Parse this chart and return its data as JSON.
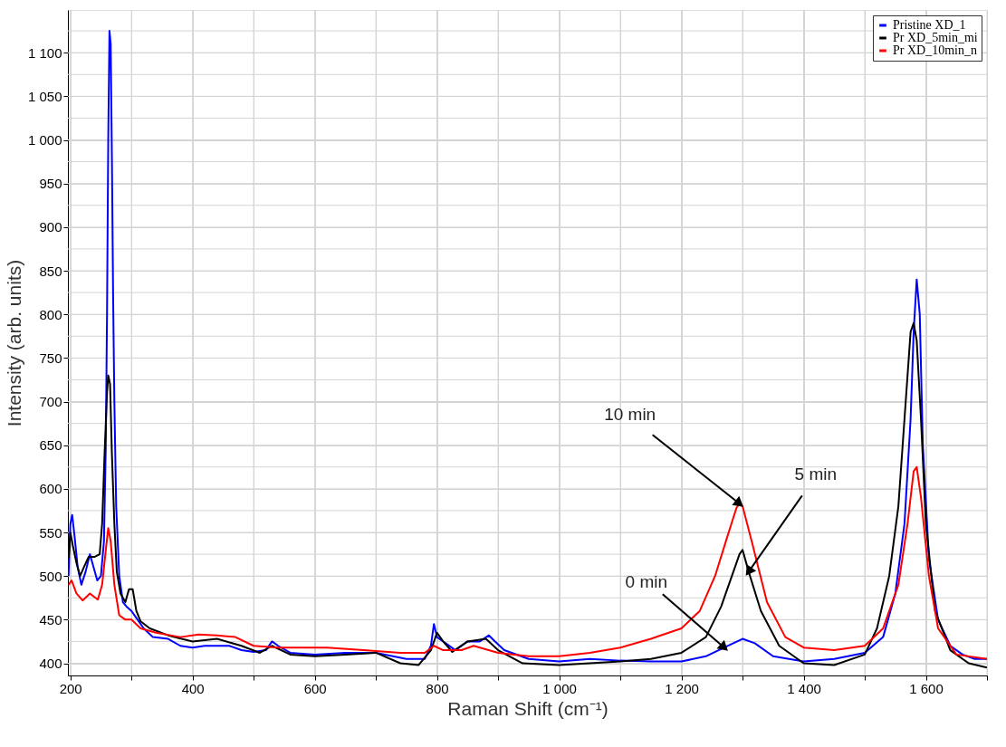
{
  "chart_data": {
    "type": "line",
    "xlabel": "Raman Shift (cm⁻¹)",
    "ylabel": "Intensity (arb. units)",
    "xlim": [
      196,
      1700
    ],
    "ylim": [
      386,
      1149
    ],
    "xticks": [
      200,
      {
        "value": 300,
        "label": null
      },
      400,
      {
        "value": 500,
        "label": null
      },
      600,
      {
        "value": 700,
        "label": null
      },
      800,
      {
        "value": 900,
        "label": null
      },
      {
        "value": 1000,
        "label": "1 000"
      },
      {
        "value": 1100,
        "label": null
      },
      {
        "value": 1200,
        "label": "1 200"
      },
      {
        "value": 1300,
        "label": null
      },
      {
        "value": 1400,
        "label": "1 400"
      },
      {
        "value": 1500,
        "label": null
      },
      {
        "value": 1600,
        "label": "1 600"
      },
      {
        "value": 1700,
        "label": null
      }
    ],
    "yticks": [
      400,
      {
        "value": 425,
        "label": null
      },
      450,
      {
        "value": 475,
        "label": null
      },
      500,
      {
        "value": 525,
        "label": null
      },
      550,
      {
        "value": 575,
        "label": null
      },
      600,
      {
        "value": 625,
        "label": null
      },
      650,
      {
        "value": 675,
        "label": null
      },
      700,
      {
        "value": 725,
        "label": null
      },
      750,
      {
        "value": 775,
        "label": null
      },
      800,
      {
        "value": 825,
        "label": null
      },
      850,
      {
        "value": 875,
        "label": null
      },
      900,
      {
        "value": 925,
        "label": null
      },
      950,
      {
        "value": 975,
        "label": null
      },
      {
        "value": 1000,
        "label": "1 000"
      },
      {
        "value": 1025,
        "label": null
      },
      {
        "value": 1050,
        "label": "1 050"
      },
      {
        "value": 1075,
        "label": null
      },
      {
        "value": 1100,
        "label": "1 100"
      },
      {
        "value": 1125,
        "label": null
      }
    ],
    "grid": true,
    "legend": "top right",
    "marker": "none",
    "line_style": "solid",
    "series": [
      {
        "name": "Pristine XD_1",
        "color": "#0000ff",
        "x": [
          197,
          200,
          203,
          207,
          212,
          218,
          225,
          232,
          238,
          244,
          250,
          255,
          258,
          260,
          262,
          264,
          266,
          268,
          270,
          272,
          275,
          280,
          286,
          292,
          300,
          310,
          320,
          335,
          360,
          380,
          400,
          420,
          440,
          460,
          480,
          500,
          520,
          530,
          540,
          560,
          600,
          650,
          700,
          750,
          780,
          790,
          795,
          800,
          810,
          830,
          850,
          870,
          885,
          895,
          910,
          950,
          1000,
          1050,
          1100,
          1150,
          1200,
          1240,
          1270,
          1300,
          1320,
          1350,
          1400,
          1450,
          1500,
          1530,
          1550,
          1565,
          1575,
          1580,
          1585,
          1590,
          1595,
          1605,
          1620,
          1640,
          1660,
          1680,
          1700
        ],
        "values": [
          500,
          560,
          570,
          545,
          510,
          490,
          505,
          525,
          510,
          495,
          500,
          540,
          650,
          800,
          1000,
          1125,
          1110,
          980,
          820,
          700,
          580,
          500,
          470,
          465,
          460,
          450,
          440,
          430,
          428,
          420,
          418,
          420,
          420,
          420,
          415,
          413,
          415,
          425,
          420,
          412,
          410,
          412,
          412,
          405,
          405,
          420,
          445,
          430,
          425,
          415,
          425,
          425,
          432,
          425,
          415,
          405,
          402,
          405,
          403,
          402,
          402,
          408,
          418,
          428,
          423,
          408,
          402,
          405,
          412,
          430,
          480,
          560,
          680,
          780,
          840,
          800,
          650,
          520,
          450,
          420,
          410,
          405,
          405
        ]
      },
      {
        "name": "Pr XD_5min_mi",
        "color": "#000000",
        "x": [
          197,
          200,
          204,
          210,
          216,
          222,
          230,
          240,
          248,
          252,
          256,
          260,
          262,
          265,
          268,
          272,
          276,
          282,
          290,
          296,
          302,
          308,
          315,
          330,
          360,
          400,
          440,
          480,
          510,
          530,
          560,
          600,
          650,
          700,
          740,
          770,
          790,
          800,
          810,
          825,
          850,
          880,
          900,
          940,
          1000,
          1050,
          1100,
          1150,
          1200,
          1240,
          1265,
          1285,
          1295,
          1300,
          1310,
          1330,
          1360,
          1400,
          1450,
          1500,
          1520,
          1540,
          1555,
          1565,
          1575,
          1580,
          1585,
          1592,
          1600,
          1615,
          1640,
          1670,
          1700
        ],
        "values": [
          520,
          550,
          535,
          515,
          500,
          510,
          522,
          522,
          525,
          560,
          640,
          710,
          730,
          720,
          640,
          560,
          505,
          480,
          470,
          485,
          485,
          460,
          448,
          440,
          432,
          425,
          428,
          420,
          412,
          420,
          410,
          408,
          410,
          412,
          400,
          398,
          415,
          435,
          425,
          413,
          425,
          428,
          415,
          400,
          398,
          400,
          402,
          405,
          412,
          430,
          465,
          505,
          525,
          530,
          505,
          460,
          420,
          400,
          398,
          410,
          440,
          500,
          580,
          680,
          780,
          790,
          770,
          680,
          560,
          460,
          415,
          400,
          395
        ]
      },
      {
        "name": "Pr XD_10min_n",
        "color": "#ff0000",
        "x": [
          197,
          202,
          210,
          220,
          232,
          245,
          252,
          258,
          262,
          266,
          272,
          280,
          290,
          300,
          315,
          340,
          380,
          410,
          440,
          470,
          500,
          540,
          580,
          620,
          680,
          740,
          780,
          795,
          810,
          840,
          860,
          900,
          950,
          1000,
          1050,
          1100,
          1150,
          1200,
          1230,
          1255,
          1275,
          1290,
          1295,
          1300,
          1315,
          1340,
          1370,
          1400,
          1450,
          1500,
          1530,
          1555,
          1570,
          1580,
          1585,
          1592,
          1605,
          1620,
          1650,
          1700
        ],
        "values": [
          490,
          495,
          480,
          472,
          480,
          473,
          490,
          530,
          555,
          540,
          490,
          455,
          450,
          450,
          440,
          435,
          430,
          433,
          432,
          430,
          420,
          418,
          418,
          418,
          415,
          412,
          412,
          420,
          415,
          415,
          420,
          412,
          408,
          408,
          412,
          418,
          428,
          440,
          460,
          500,
          545,
          578,
          583,
          580,
          540,
          470,
          430,
          418,
          415,
          420,
          440,
          490,
          560,
          620,
          625,
          590,
          500,
          440,
          410,
          405
        ]
      }
    ],
    "annotations": [
      {
        "text": "10 min",
        "x": 1295,
        "y": 583
      },
      {
        "text": "5 min",
        "x": 1310,
        "y": 505
      },
      {
        "text": "0 min",
        "x": 1270,
        "y": 418
      }
    ]
  }
}
